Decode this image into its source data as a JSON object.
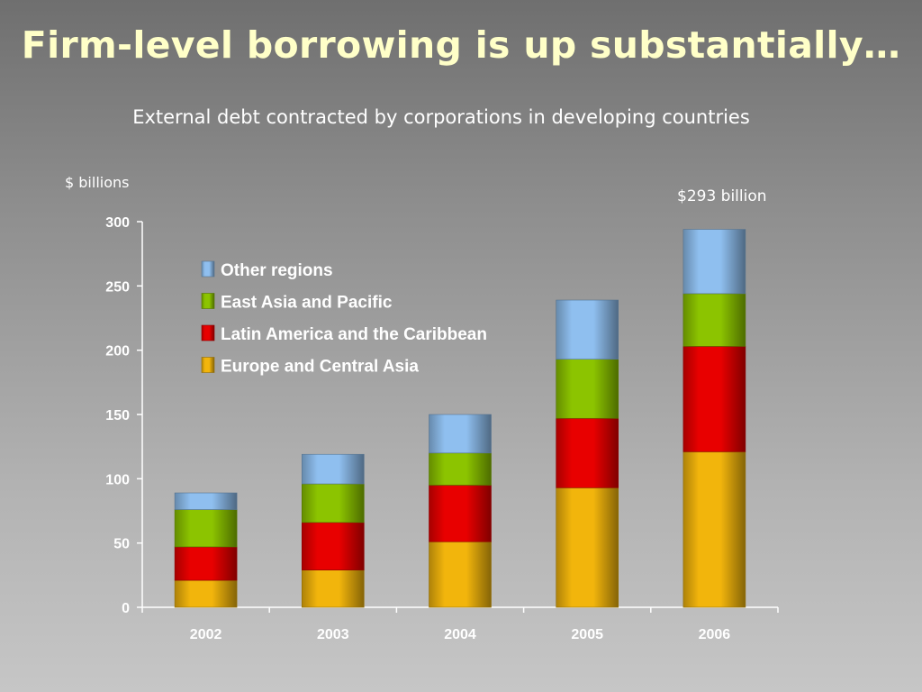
{
  "slide": {
    "title": "Firm-level borrowing is up substantially…",
    "subtitle": "External debt contracted by corporations in developing countries",
    "unit_label": "$ billions",
    "annotation": "$293 billion"
  },
  "chart_data": {
    "type": "bar",
    "stacked": true,
    "title": "External debt contracted by corporations in developing countries",
    "xlabel": "",
    "ylabel": "$ billions",
    "ylim": [
      0,
      300
    ],
    "yticks": [
      0,
      50,
      100,
      150,
      200,
      250,
      300
    ],
    "categories": [
      "2002",
      "2003",
      "2004",
      "2005",
      "2006"
    ],
    "series": [
      {
        "name": "Europe and Central Asia",
        "values": [
          21,
          29,
          51,
          93,
          121
        ],
        "color": "#f2b50c"
      },
      {
        "name": "Latin America and the Caribbean",
        "values": [
          26,
          37,
          44,
          54,
          82
        ],
        "color": "#e80000"
      },
      {
        "name": "East Asia and Pacific",
        "values": [
          29,
          30,
          25,
          46,
          41
        ],
        "color": "#8cc400"
      },
      {
        "name": "Other regions",
        "values": [
          13,
          23,
          30,
          46,
          50
        ],
        "color": "#8fbfef"
      }
    ],
    "legend_order": [
      "Other regions",
      "East Asia and Pacific",
      "Latin America and the Caribbean",
      "Europe and Central Asia"
    ],
    "legend_position": "top-left",
    "grid": false
  }
}
